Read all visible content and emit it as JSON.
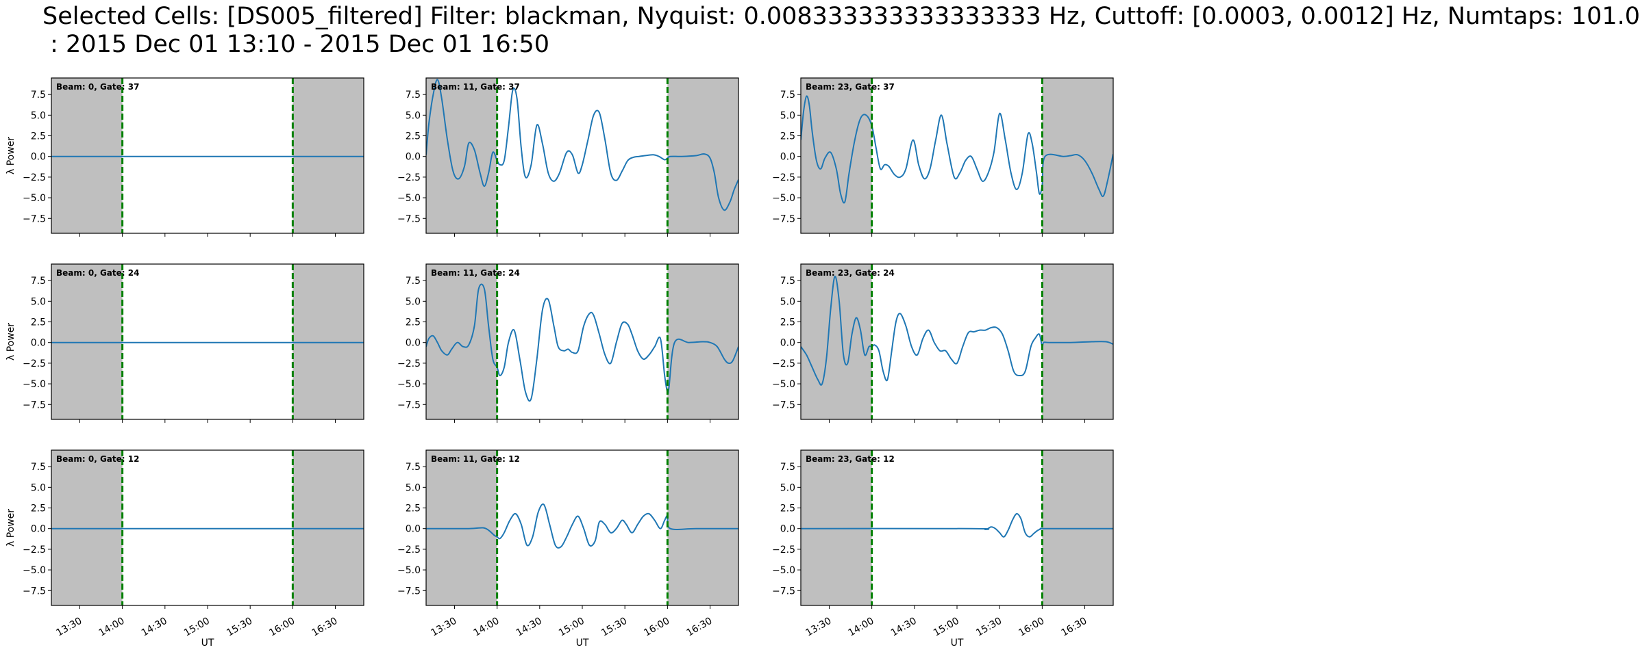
{
  "figure": {
    "title_line1": "Selected Cells: [DS005_filtered] Filter: blackman, Nyquist: 0.008333333333333333 Hz, Cuttoff: [0.0003, 0.0012] Hz, Numtaps: 101.0",
    "title_line2": " : 2015 Dec 01 13:10 - 2015 Dec 01 16:50"
  },
  "chart_data": {
    "type": "line",
    "grid": false,
    "xlabel": "UT",
    "ylabel": "λ Power",
    "xlim": [
      "13:10",
      "16:50"
    ],
    "ylim": [
      -9.3,
      9.5
    ],
    "yticks": [
      7.5,
      5.0,
      2.5,
      0.0,
      -2.5,
      -5.0,
      -7.5
    ],
    "ytick_labels": [
      "7.5",
      "5.0",
      "2.5",
      "0.0",
      "−2.5",
      "−5.0",
      "−7.5"
    ],
    "xticks": [
      "13:30",
      "14:00",
      "14:30",
      "15:00",
      "15:30",
      "16:00",
      "16:30"
    ],
    "shaded_before": "14:00",
    "shaded_after": "16:00",
    "markers": [
      "14:00",
      "16:00"
    ],
    "colors": {
      "line": "#1f77b4",
      "marker": "#008000",
      "shade": "#bfbfbf"
    },
    "panels": [
      {
        "label": "Beam: 0, Gate: 37",
        "row": 0,
        "col": 0,
        "series": {
          "x": [
            "13:10",
            "16:50"
          ],
          "y": [
            0,
            0
          ]
        }
      },
      {
        "label": "Beam: 11, Gate: 37",
        "row": 0,
        "col": 1,
        "series": {
          "x": [
            "13:10",
            "13:12",
            "13:15",
            "13:18",
            "13:21",
            "13:25",
            "13:29",
            "13:33",
            "13:37",
            "13:40",
            "13:44",
            "13:48",
            "13:51",
            "13:54",
            "13:57",
            "14:00",
            "14:02",
            "14:05",
            "14:08",
            "14:11",
            "14:14",
            "14:17",
            "14:20",
            "14:24",
            "14:28",
            "14:32",
            "14:36",
            "14:40",
            "14:44",
            "14:49",
            "14:53",
            "14:57",
            "15:00",
            "15:04",
            "15:08",
            "15:12",
            "15:16",
            "15:20",
            "15:24",
            "15:28",
            "15:32",
            "15:36",
            "15:40",
            "15:44",
            "15:50",
            "15:54",
            "15:58",
            "16:00",
            "16:02",
            "16:10",
            "16:20",
            "16:26",
            "16:30",
            "16:33",
            "16:36",
            "16:40",
            "16:44",
            "16:47",
            "16:50"
          ],
          "y": [
            0.2,
            4.0,
            7.5,
            9.3,
            7.0,
            2.0,
            -1.8,
            -2.7,
            -1.2,
            1.6,
            0.8,
            -2.0,
            -3.6,
            -2.0,
            0.5,
            -0.5,
            -1.0,
            -0.5,
            3.5,
            8.0,
            7.0,
            1.0,
            -2.5,
            -1.0,
            3.8,
            1.5,
            -2.0,
            -3.0,
            -2.0,
            0.5,
            0.2,
            -2.0,
            -1.0,
            2.0,
            5.0,
            5.3,
            2.0,
            -2.0,
            -2.9,
            -1.8,
            -0.5,
            -0.1,
            0.0,
            0.1,
            0.2,
            0.0,
            -0.4,
            -0.2,
            0.0,
            0.0,
            0.1,
            0.3,
            -0.2,
            -2.0,
            -5.0,
            -6.5,
            -5.5,
            -4.0,
            -2.8
          ]
        }
      },
      {
        "label": "Beam: 23, Gate: 37",
        "row": 0,
        "col": 2,
        "series": {
          "x": [
            "13:10",
            "13:12",
            "13:14",
            "13:16",
            "13:18",
            "13:21",
            "13:24",
            "13:27",
            "13:31",
            "13:35",
            "13:38",
            "13:41",
            "13:44",
            "13:48",
            "13:52",
            "13:56",
            "14:00",
            "14:03",
            "14:06",
            "14:09",
            "14:12",
            "14:16",
            "14:20",
            "14:24",
            "14:29",
            "14:33",
            "14:37",
            "14:41",
            "14:45",
            "14:49",
            "14:53",
            "14:58",
            "15:02",
            "15:06",
            "15:10",
            "15:14",
            "15:18",
            "15:22",
            "15:26",
            "15:30",
            "15:34",
            "15:38",
            "15:42",
            "15:46",
            "15:50",
            "15:53",
            "15:56",
            "15:58",
            "16:00",
            "16:02",
            "16:15",
            "16:20",
            "16:25",
            "16:30",
            "16:35",
            "16:40",
            "16:43",
            "16:46",
            "16:50"
          ],
          "y": [
            2.0,
            5.5,
            7.3,
            6.2,
            3.0,
            -0.5,
            -1.5,
            -0.2,
            0.5,
            -1.5,
            -4.5,
            -5.5,
            -2.0,
            2.0,
            4.6,
            5.0,
            3.7,
            1.0,
            -1.5,
            -1.0,
            -1.2,
            -2.2,
            -2.5,
            -1.5,
            2.0,
            -1.0,
            -2.7,
            -1.5,
            2.0,
            5.0,
            1.5,
            -2.5,
            -2.0,
            -0.5,
            0.0,
            -1.5,
            -3.0,
            -2.0,
            0.5,
            5.2,
            2.0,
            -2.0,
            -4.0,
            -2.0,
            2.7,
            1.5,
            -2.0,
            -4.5,
            -3.5,
            0.0,
            0.0,
            0.1,
            0.2,
            -0.5,
            -2.0,
            -4.0,
            -4.8,
            -3.0,
            0.3
          ]
        }
      },
      {
        "label": "Beam: 0, Gate: 24",
        "row": 1,
        "col": 0,
        "series": {
          "x": [
            "13:10",
            "16:50"
          ],
          "y": [
            0,
            0
          ]
        }
      },
      {
        "label": "Beam: 11, Gate: 24",
        "row": 1,
        "col": 1,
        "series": {
          "x": [
            "13:10",
            "13:12",
            "13:15",
            "13:18",
            "13:21",
            "13:25",
            "13:28",
            "13:32",
            "13:36",
            "13:40",
            "13:44",
            "13:47",
            "13:51",
            "13:54",
            "13:57",
            "14:00",
            "14:02",
            "14:05",
            "14:08",
            "14:12",
            "14:16",
            "14:20",
            "14:24",
            "14:28",
            "14:32",
            "14:36",
            "14:40",
            "14:43",
            "14:47",
            "14:50",
            "14:53",
            "14:57",
            "15:01",
            "15:05",
            "15:08",
            "15:12",
            "15:16",
            "15:20",
            "15:24",
            "15:28",
            "15:32",
            "15:35",
            "15:39",
            "15:43",
            "15:47",
            "15:51",
            "15:55",
            "15:58",
            "16:00",
            "16:01",
            "16:05",
            "16:15",
            "16:25",
            "16:30",
            "16:35",
            "16:40",
            "16:43",
            "16:46",
            "16:50"
          ],
          "y": [
            -0.5,
            0.5,
            0.8,
            0.0,
            -1.0,
            -1.5,
            -0.8,
            0.0,
            -0.5,
            -0.3,
            2.0,
            6.5,
            6.5,
            2.0,
            -2.0,
            -3.0,
            -4.0,
            -3.0,
            0.0,
            1.5,
            -2.0,
            -6.0,
            -6.8,
            -2.0,
            4.0,
            5.2,
            2.0,
            -0.5,
            -1.0,
            -0.8,
            -1.2,
            -1.0,
            2.0,
            3.5,
            3.3,
            1.0,
            -1.5,
            -2.5,
            0.0,
            2.3,
            2.2,
            1.0,
            -1.0,
            -2.0,
            -1.5,
            -0.5,
            0.5,
            -4.0,
            -6.0,
            -5.5,
            0.0,
            0.0,
            0.1,
            0.0,
            -0.5,
            -2.0,
            -2.5,
            -2.2,
            -0.5
          ]
        }
      },
      {
        "label": "Beam: 23, Gate: 24",
        "row": 1,
        "col": 2,
        "series": {
          "x": [
            "13:10",
            "13:14",
            "13:18",
            "13:22",
            "13:25",
            "13:28",
            "13:31",
            "13:34",
            "13:37",
            "13:40",
            "13:43",
            "13:46",
            "13:49",
            "13:52",
            "13:55",
            "13:58",
            "14:00",
            "14:02",
            "14:05",
            "14:08",
            "14:11",
            "14:14",
            "14:17",
            "14:20",
            "14:24",
            "14:28",
            "14:32",
            "14:36",
            "14:40",
            "14:44",
            "14:48",
            "14:52",
            "14:56",
            "15:00",
            "15:04",
            "15:08",
            "15:12",
            "15:16",
            "15:20",
            "15:24",
            "15:28",
            "15:32",
            "15:36",
            "15:40",
            "15:44",
            "15:48",
            "15:52",
            "15:55",
            "15:58",
            "16:00",
            "16:01",
            "16:05",
            "16:20",
            "16:35",
            "16:45",
            "16:50"
          ],
          "y": [
            -0.5,
            -1.5,
            -3.0,
            -4.5,
            -5.0,
            -2.0,
            4.0,
            8.0,
            5.0,
            -1.5,
            -2.5,
            1.0,
            3.0,
            1.5,
            -1.5,
            -0.5,
            -0.5,
            -0.3,
            -1.0,
            -3.5,
            -4.5,
            -1.0,
            2.5,
            3.5,
            2.0,
            -0.5,
            -1.5,
            0.5,
            1.5,
            0.0,
            -1.0,
            -1.0,
            -2.0,
            -2.5,
            -0.5,
            1.2,
            1.3,
            1.5,
            1.5,
            1.8,
            1.8,
            1.0,
            -1.0,
            -3.5,
            -4.0,
            -3.5,
            -0.5,
            0.5,
            1.0,
            -0.5,
            0.0,
            0.0,
            0.0,
            0.1,
            0.1,
            -0.2
          ]
        }
      },
      {
        "label": "Beam: 0, Gate: 12",
        "row": 2,
        "col": 0,
        "series": {
          "x": [
            "13:10",
            "16:50"
          ],
          "y": [
            0,
            0
          ]
        }
      },
      {
        "label": "Beam: 11, Gate: 12",
        "row": 2,
        "col": 1,
        "series": {
          "x": [
            "13:10",
            "13:40",
            "13:50",
            "13:54",
            "13:58",
            "14:00",
            "14:02",
            "14:05",
            "14:09",
            "14:13",
            "14:17",
            "14:21",
            "14:25",
            "14:29",
            "14:33",
            "14:37",
            "14:41",
            "14:45",
            "14:49",
            "14:53",
            "14:57",
            "15:01",
            "15:05",
            "15:09",
            "15:12",
            "15:16",
            "15:20",
            "15:24",
            "15:28",
            "15:31",
            "15:35",
            "15:39",
            "15:43",
            "15:47",
            "15:51",
            "15:55",
            "15:58",
            "16:00",
            "16:02",
            "16:20",
            "16:50"
          ],
          "y": [
            0.0,
            0.0,
            0.1,
            -0.2,
            -0.8,
            -1.0,
            -1.2,
            -0.5,
            1.0,
            1.8,
            0.5,
            -2.0,
            -1.0,
            2.0,
            2.9,
            0.5,
            -2.0,
            -2.2,
            -1.0,
            0.5,
            1.5,
            0.0,
            -2.0,
            -1.5,
            0.8,
            0.5,
            -0.5,
            0.0,
            1.0,
            0.5,
            -0.5,
            0.5,
            1.5,
            1.8,
            1.0,
            0.0,
            1.0,
            1.5,
            0.0,
            0.0,
            0.0
          ]
        }
      },
      {
        "label": "Beam: 23, Gate: 12",
        "row": 2,
        "col": 2,
        "series": {
          "x": [
            "13:10",
            "15:10",
            "15:20",
            "15:24",
            "15:27",
            "15:30",
            "15:33",
            "15:36",
            "15:39",
            "15:42",
            "15:45",
            "15:48",
            "15:51",
            "15:54",
            "15:57",
            "16:00",
            "16:03",
            "16:50"
          ],
          "y": [
            0.0,
            0.0,
            -0.1,
            0.2,
            0.0,
            -0.5,
            -1.0,
            -0.2,
            1.0,
            1.8,
            1.2,
            -0.5,
            -1.0,
            -0.6,
            -0.2,
            0.0,
            0.0,
            0.0
          ]
        }
      }
    ]
  }
}
